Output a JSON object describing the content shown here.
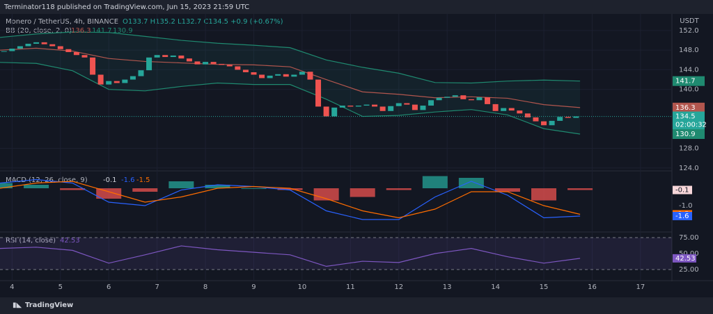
{
  "header": "Terminator118 published on TradingView.com, Jun 15, 2023 21:59 UTC",
  "footer": "TradingView",
  "chart": {
    "type": "candlestick",
    "symbol": "Monero / TetherUS, 4h, BINANCE",
    "ohlc": "O133.7 H135.2 L132.7 C134.5 +0.9 (+0.67%)",
    "currency": "USDT",
    "up_color": "#26a69a",
    "down_color": "#ef5350",
    "xlim": [
      3.75,
      17.65
    ],
    "xticks": [
      4,
      5,
      6,
      7,
      8,
      9,
      10,
      11,
      12,
      13,
      14,
      15,
      16,
      17
    ],
    "ylim": [
      123.4,
      155.1
    ],
    "yticks": [
      {
        "value": 152,
        "label": "152.0"
      },
      {
        "value": 148,
        "label": "148.0"
      },
      {
        "value": 144,
        "label": "144.0"
      },
      {
        "value": 140,
        "label": "140.0"
      },
      {
        "value": 128,
        "label": "128.0"
      },
      {
        "value": 124,
        "label": "124.0"
      }
    ],
    "closes": [
      147.8,
      148.3,
      148.8,
      149.3,
      149.6,
      149.2,
      148.8,
      148.2,
      147.6,
      147.0,
      146.5,
      143.0,
      141.0,
      141.7,
      141.3,
      142.0,
      142.7,
      143.9,
      146.5,
      147.0,
      146.6,
      146.9,
      146.3,
      145.7,
      145.1,
      145.6,
      145.2,
      145.0,
      144.7,
      144.0,
      143.5,
      143.0,
      142.3,
      142.8,
      143.1,
      142.6,
      143.0,
      143.6,
      142.0,
      136.5,
      134.5,
      136.3,
      136.7,
      136.5,
      136.7,
      136.9,
      136.5,
      135.6,
      136.6,
      137.2,
      136.9,
      135.8,
      136.7,
      137.8,
      138.3,
      138.5,
      138.8,
      138.0,
      137.8,
      138.4,
      137.0,
      135.6,
      136.2,
      135.7,
      135.1,
      134.3,
      133.5,
      132.7,
      133.6,
      134.4,
      134.2,
      134.5
    ],
    "last_price": 134.5,
    "countdown": "02:00:32",
    "x": [
      3.75,
      4.5,
      5.25,
      6,
      6.75,
      7.5,
      8.25,
      9,
      9.75,
      10.5,
      11.25,
      12,
      12.75,
      13.5,
      14.25,
      15,
      15.75
    ],
    "bb": {
      "name": "BB (20, close, 2, 0)",
      "current": [
        136.3,
        141.7,
        130.9
      ],
      "series": [
        {
          "color": "#b2564e",
          "values": [
            148.0,
            148.4,
            147.8,
            146.3,
            145.7,
            145.4,
            145.1,
            145.0,
            144.6,
            142.0,
            139.5,
            139.0,
            138.3,
            138.5,
            138.2,
            136.9,
            136.3
          ]
        },
        {
          "color": "#1f8a70",
          "values": [
            150.6,
            151.3,
            151.7,
            151.6,
            150.8,
            150.0,
            149.4,
            149.0,
            148.5,
            146.0,
            144.5,
            143.3,
            141.4,
            141.3,
            141.7,
            141.9,
            141.7
          ]
        },
        {
          "color": "#1f8a70",
          "values": [
            145.5,
            145.3,
            143.8,
            140.0,
            139.7,
            140.6,
            141.3,
            141.0,
            141.0,
            138.0,
            134.5,
            134.7,
            135.4,
            135.9,
            134.8,
            132.0,
            130.9
          ]
        }
      ]
    },
    "macd": {
      "name": "MACD (12, 26, close, 9)",
      "current": [
        -0.1,
        -1.6,
        -1.5
      ],
      "ylim": [
        -2.48,
        0.92
      ],
      "yticks": [
        {
          "value": -1,
          "label": "-1.0"
        }
      ],
      "histogram": [
        0.3,
        0.2,
        -0.1,
        -0.6,
        -0.2,
        0.4,
        0.2,
        0,
        -0.1,
        -0.7,
        -0.5,
        -0.1,
        0.7,
        0.6,
        -0.2,
        -0.7,
        -0.1
      ],
      "macd": {
        "color": "#2962ff",
        "values": [
          0.3,
          0.5,
          0.3,
          -0.8,
          -1.0,
          -0.1,
          0.2,
          0.1,
          -0.1,
          -1.3,
          -1.8,
          -1.8,
          -0.5,
          0.4,
          -0.4,
          -1.7,
          -1.6
        ]
      },
      "signal": {
        "color": "#ff6d00",
        "values": [
          0.0,
          0.3,
          0.4,
          -0.2,
          -0.8,
          -0.5,
          0.0,
          0.1,
          0.0,
          -0.6,
          -1.3,
          -1.7,
          -1.2,
          -0.2,
          -0.2,
          -1.0,
          -1.5
        ]
      }
    },
    "rsi": {
      "name": "RSI (14, close)",
      "current": 42.53,
      "color": "#7e57c2",
      "ylim": [
        9.8,
        81.5
      ],
      "yticks": [
        {
          "value": 75,
          "label": "75.00"
        },
        {
          "value": 50,
          "label": "50.00"
        },
        {
          "value": 25,
          "label": "25.00"
        }
      ],
      "values": [
        58,
        60,
        55,
        35,
        48,
        62,
        56,
        52,
        48,
        30,
        38,
        36,
        50,
        58,
        45,
        35,
        42.53
      ]
    }
  }
}
